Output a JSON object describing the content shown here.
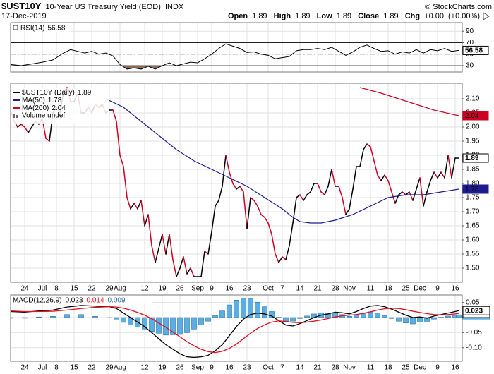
{
  "header": {
    "symbol": "$UST10Y",
    "name": "10-Year US Treasury Yield (EOD)",
    "exchange": "INDX",
    "date": "17-Dec-2019",
    "source": "© StockCharts.com",
    "quote": {
      "open_label": "Open",
      "open": 1.89,
      "high_label": "High",
      "high": 1.89,
      "low_label": "Low",
      "low": 1.89,
      "close_label": "Close",
      "close": 1.89,
      "chg_label": "Chg",
      "chg": "+0.00",
      "chg_pct": "(+0.00%)"
    }
  },
  "chart_data": [
    {
      "type": "line",
      "label": "RSI(14)",
      "color": "#000000",
      "x": [
        0,
        3,
        6,
        9,
        12,
        15,
        17,
        19,
        21,
        23,
        25,
        27,
        29,
        31,
        33,
        35,
        37,
        39,
        41,
        43,
        45,
        47,
        49,
        51,
        53,
        55,
        57,
        59,
        61,
        63,
        65,
        67,
        69,
        71,
        73,
        75,
        77,
        79,
        81,
        83,
        85,
        87,
        89,
        91,
        93,
        95,
        97,
        99,
        101,
        103,
        105,
        107,
        109,
        111,
        113,
        115,
        117,
        119,
        121,
        123,
        125,
        127
      ],
      "values": [
        32,
        30,
        33,
        36,
        40,
        52,
        58,
        55,
        52,
        55,
        50,
        52,
        47,
        32,
        24,
        26,
        24,
        29,
        24,
        30,
        35,
        30,
        33,
        36,
        35,
        42,
        50,
        60,
        68,
        64,
        60,
        53,
        54,
        50,
        48,
        42,
        44,
        46,
        56,
        58,
        58,
        60,
        58,
        62,
        55,
        48,
        54,
        62,
        66,
        60,
        55,
        56,
        50,
        54,
        52,
        58,
        52,
        58,
        56,
        60,
        55,
        56.58
      ],
      "ylim": [
        19,
        105
      ],
      "yticks": [
        90,
        70,
        50,
        30
      ],
      "grid": true,
      "reference_lines": [
        {
          "value": 70,
          "style": "solid"
        },
        {
          "value": 50,
          "style": "dashed"
        },
        {
          "value": 30,
          "style": "solid"
        }
      ],
      "shade_below": 30,
      "shade_color": "#8b6a5a"
    },
    {
      "type": "line",
      "grid": true,
      "volume_label": "Volume undef",
      "xlim": [
        0,
        128
      ],
      "xticks": [
        {
          "value": 4,
          "label": "24"
        },
        {
          "value": 9,
          "label": "Jul"
        },
        {
          "value": 13,
          "label": "8"
        },
        {
          "value": 18,
          "label": "15"
        },
        {
          "value": 23,
          "label": "22"
        },
        {
          "value": 28,
          "label": "29"
        },
        {
          "value": 31,
          "label": "Aug"
        },
        {
          "value": 38,
          "label": "12"
        },
        {
          "value": 43,
          "label": "19"
        },
        {
          "value": 48,
          "label": "26"
        },
        {
          "value": 53,
          "label": "Sep"
        },
        {
          "value": 57,
          "label": "9"
        },
        {
          "value": 62,
          "label": "16"
        },
        {
          "value": 67,
          "label": "23"
        },
        {
          "value": 73,
          "label": "Oct"
        },
        {
          "value": 77,
          "label": "7"
        },
        {
          "value": 82,
          "label": "14"
        },
        {
          "value": 87,
          "label": "21"
        },
        {
          "value": 92,
          "label": "28"
        },
        {
          "value": 96,
          "label": "Nov"
        },
        {
          "value": 102,
          "label": "11"
        },
        {
          "value": 107,
          "label": "18"
        },
        {
          "value": 112,
          "label": "25"
        },
        {
          "value": 116,
          "label": "Dec"
        },
        {
          "value": 121,
          "label": "9"
        },
        {
          "value": 126,
          "label": "16"
        }
      ],
      "ylim": [
        1.45,
        2.155
      ],
      "yticks": [
        {
          "value": 2.1,
          "label": "2.10"
        },
        2.05,
        {
          "value": 2,
          "label": "2.00"
        },
        1.95,
        {
          "value": 1.9,
          "label": "1.90"
        },
        1.85,
        {
          "value": 1.8,
          "label": "1.80"
        },
        1.75,
        {
          "value": 1.7,
          "label": "1.70"
        },
        1.65,
        {
          "value": 1.6,
          "label": "1.60"
        },
        1.55,
        {
          "value": 1.5,
          "label": "1.50"
        }
      ],
      "series": [
        {
          "name": "$UST10Y (Daily)",
          "color": "#000000",
          "down_color": "#cc0022",
          "tag_style": "outline",
          "x": [
            0,
            1,
            2,
            3,
            4,
            5,
            6,
            7,
            8,
            9,
            10,
            11,
            12,
            13,
            14,
            15,
            16,
            17,
            18,
            19,
            20,
            21,
            22,
            23,
            24,
            25,
            26,
            27,
            28,
            29,
            30,
            31,
            32,
            33,
            34,
            35,
            36,
            37,
            38,
            39,
            40,
            41,
            42,
            43,
            44,
            45,
            46,
            47,
            48,
            49,
            50,
            51,
            52,
            53,
            54,
            55,
            56,
            57,
            58,
            59,
            60,
            61,
            62,
            63,
            64,
            65,
            66,
            67,
            68,
            69,
            70,
            71,
            72,
            73,
            74,
            75,
            76,
            77,
            78,
            79,
            80,
            81,
            82,
            83,
            84,
            85,
            86,
            87,
            88,
            89,
            90,
            91,
            92,
            93,
            94,
            95,
            96,
            97,
            98,
            99,
            100,
            101,
            102,
            103,
            104,
            105,
            106,
            107,
            108,
            109,
            110,
            111,
            112,
            113,
            114,
            115,
            116,
            117,
            118,
            119,
            120,
            121,
            122,
            123,
            124,
            125,
            126,
            127
          ],
          "values": [
            2.06,
            2.02,
            2.0,
            2.01,
            2.0,
            1.98,
            2.0,
            2.02,
            2.01,
            2.03,
            1.96,
            1.95,
            2.05,
            2.07,
            2.05,
            2.12,
            2.14,
            2.09,
            2.09,
            2.12,
            2.05,
            2.05,
            2.07,
            2.05,
            2.08,
            2.07,
            2.08,
            2.05,
            2.06,
            2.06,
            2.02,
            1.9,
            1.86,
            1.75,
            1.71,
            1.73,
            1.71,
            1.74,
            1.65,
            1.69,
            1.58,
            1.52,
            1.57,
            1.62,
            1.55,
            1.62,
            1.53,
            1.47,
            1.5,
            1.54,
            1.48,
            1.5,
            1.47,
            1.47,
            1.47,
            1.56,
            1.55,
            1.63,
            1.72,
            1.74,
            1.79,
            1.9,
            1.84,
            1.8,
            1.78,
            1.79,
            1.77,
            1.64,
            1.75,
            1.74,
            1.72,
            1.69,
            1.68,
            1.66,
            1.62,
            1.55,
            1.52,
            1.54,
            1.53,
            1.58,
            1.66,
            1.75,
            1.76,
            1.74,
            1.76,
            1.77,
            1.8,
            1.8,
            1.77,
            1.76,
            1.79,
            1.85,
            1.79,
            1.79,
            1.75,
            1.69,
            1.71,
            1.78,
            1.86,
            1.86,
            1.92,
            1.94,
            1.93,
            1.88,
            1.83,
            1.81,
            1.83,
            1.81,
            1.77,
            1.73,
            1.76,
            1.77,
            1.76,
            1.77,
            1.74,
            1.78,
            1.82,
            1.72,
            1.77,
            1.81,
            1.84,
            1.82,
            1.84,
            1.82,
            1.9,
            1.82,
            1.89,
            1.89
          ]
        },
        {
          "name": "MA(50)",
          "color": "#1c1c8f",
          "tag_style": "filled",
          "x": [
            27,
            32,
            37,
            42,
            47,
            52,
            57,
            62,
            67,
            72,
            77,
            80,
            82,
            85,
            88,
            92,
            97,
            102,
            107,
            112,
            117,
            122,
            127
          ],
          "values": [
            2.1,
            2.07,
            2.02,
            1.97,
            1.92,
            1.88,
            1.85,
            1.82,
            1.79,
            1.75,
            1.71,
            1.68,
            1.665,
            1.66,
            1.66,
            1.67,
            1.69,
            1.72,
            1.75,
            1.76,
            1.76,
            1.77,
            1.78
          ]
        },
        {
          "name": "MA(200)",
          "color": "#cc0022",
          "tag_style": "filled",
          "x": [
            99,
            105,
            110,
            115,
            120,
            127
          ],
          "values": [
            2.14,
            2.12,
            2.1,
            2.08,
            2.06,
            2.04
          ]
        }
      ]
    },
    {
      "type": "combo",
      "label": "MACD(12,26,9)",
      "grid": true,
      "ylim": [
        -0.145,
        0.075
      ],
      "yticks": [
        0.05,
        {
          "value": 0,
          "label": "0.00"
        },
        -0.05,
        {
          "value": -0.1,
          "label": "-0.10"
        }
      ],
      "x": [
        0,
        4,
        8,
        12,
        16,
        20,
        24,
        28,
        30,
        32,
        34,
        36,
        38,
        40,
        42,
        44,
        46,
        48,
        50,
        52,
        54,
        56,
        58,
        60,
        62,
        64,
        66,
        68,
        70,
        72,
        74,
        76,
        78,
        80,
        82,
        84,
        86,
        88,
        90,
        92,
        94,
        96,
        98,
        100,
        102,
        104,
        106,
        108,
        110,
        112,
        114,
        116,
        118,
        120,
        122,
        124,
        126,
        127
      ],
      "series": [
        {
          "type": "bar",
          "color": "#5aaee6",
          "edge_color": "#2a6e9e",
          "values": [
            -0.002,
            -0.002,
            0.002,
            0.004,
            0.01,
            0.01,
            0.004,
            0,
            -0.005,
            -0.016,
            -0.025,
            -0.032,
            -0.038,
            -0.046,
            -0.052,
            -0.058,
            -0.057,
            -0.056,
            -0.05,
            -0.038,
            -0.025,
            -0.012,
            0.006,
            0.022,
            0.042,
            0.058,
            0.065,
            0.062,
            0.051,
            0.036,
            0.02,
            0.001,
            -0.012,
            -0.012,
            -0.003,
            0.005,
            0.012,
            0.016,
            0.015,
            0.016,
            0.01,
            0.004,
            0.01,
            0.016,
            0.019,
            0.015,
            0.007,
            -0.003,
            -0.012,
            -0.018,
            -0.021,
            -0.015,
            -0.015,
            -0.005,
            0.001,
            0.005,
            0.008,
            0.009
          ]
        },
        {
          "type": "line",
          "color": "#000000",
          "values": [
            0.02,
            0.018,
            0.022,
            0.025,
            0.035,
            0.04,
            0.038,
            0.036,
            0.03,
            0.015,
            0,
            -0.015,
            -0.03,
            -0.05,
            -0.07,
            -0.09,
            -0.105,
            -0.12,
            -0.13,
            -0.132,
            -0.13,
            -0.125,
            -0.11,
            -0.09,
            -0.06,
            -0.03,
            -0.005,
            0.01,
            0.015,
            0.012,
            0.005,
            -0.01,
            -0.025,
            -0.028,
            -0.02,
            -0.01,
            0,
            0.008,
            0.012,
            0.018,
            0.016,
            0.012,
            0.02,
            0.03,
            0.038,
            0.04,
            0.036,
            0.028,
            0.018,
            0.008,
            0,
            0.002,
            -0.002,
            0.005,
            0.01,
            0.015,
            0.02,
            0.023
          ]
        },
        {
          "type": "line",
          "color": "#e01020",
          "values": [
            0.022,
            0.02,
            0.02,
            0.021,
            0.025,
            0.03,
            0.034,
            0.036,
            0.035,
            0.031,
            0.025,
            0.017,
            0.008,
            -0.004,
            -0.018,
            -0.032,
            -0.048,
            -0.064,
            -0.08,
            -0.094,
            -0.105,
            -0.113,
            -0.116,
            -0.112,
            -0.102,
            -0.088,
            -0.07,
            -0.052,
            -0.036,
            -0.024,
            -0.015,
            -0.011,
            -0.013,
            -0.016,
            -0.017,
            -0.015,
            -0.012,
            -0.008,
            -0.003,
            0.002,
            0.006,
            0.008,
            0.01,
            0.014,
            0.019,
            0.025,
            0.029,
            0.031,
            0.03,
            0.026,
            0.021,
            0.017,
            0.013,
            0.01,
            0.009,
            0.01,
            0.012,
            0.014
          ]
        }
      ]
    }
  ]
}
